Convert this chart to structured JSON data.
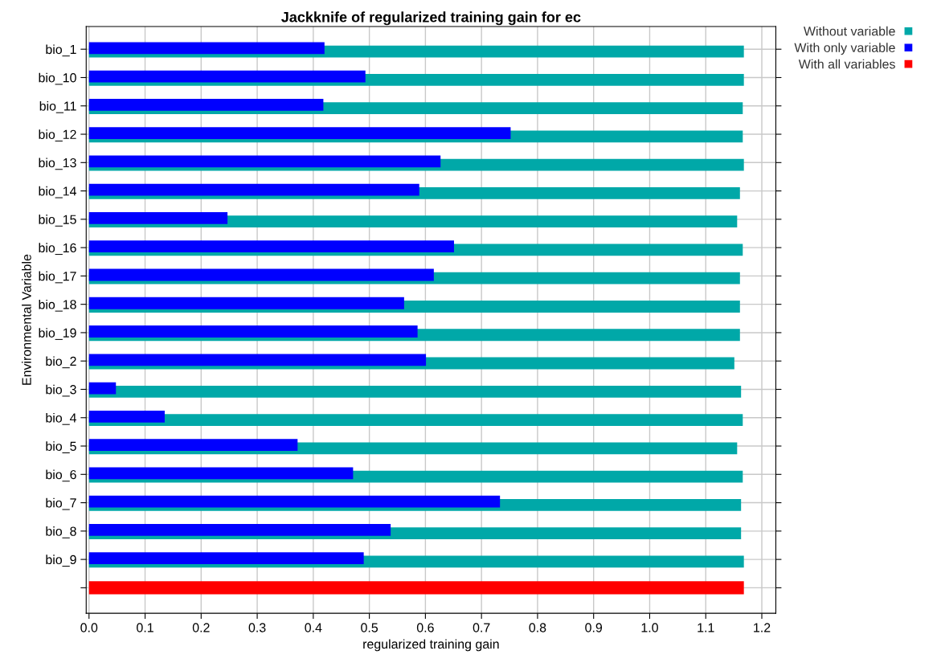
{
  "chart_data": {
    "type": "bar",
    "orientation": "horizontal",
    "title": "Jackknife of regularized training gain for ec",
    "xlabel": "regularized training gain",
    "ylabel": "Environmental Variable",
    "categories": [
      "bio_1",
      "bio_10",
      "bio_11",
      "bio_12",
      "bio_13",
      "bio_14",
      "bio_15",
      "bio_16",
      "bio_17",
      "bio_18",
      "bio_19",
      "bio_2",
      "bio_3",
      "bio_4",
      "bio_5",
      "bio_6",
      "bio_7",
      "bio_8",
      "bio_9",
      null
    ],
    "series": [
      {
        "name": "Without variable",
        "color": "#00a8a8",
        "values": [
          1.168,
          1.168,
          1.166,
          1.166,
          1.168,
          1.161,
          1.156,
          1.166,
          1.161,
          1.161,
          1.161,
          1.151,
          1.163,
          1.166,
          1.156,
          1.166,
          1.163,
          1.163,
          1.168,
          null
        ]
      },
      {
        "name": "With only variable",
        "color": "#0000ff",
        "values": [
          0.42,
          0.493,
          0.418,
          0.752,
          0.627,
          0.589,
          0.247,
          0.651,
          0.615,
          0.562,
          0.586,
          0.601,
          0.048,
          0.135,
          0.372,
          0.471,
          0.733,
          0.538,
          0.49,
          null
        ]
      },
      {
        "name": "With all variables",
        "color": "#ff0000",
        "values": [
          null,
          null,
          null,
          null,
          null,
          null,
          null,
          null,
          null,
          null,
          null,
          null,
          null,
          null,
          null,
          null,
          null,
          null,
          null,
          1.168
        ]
      }
    ],
    "xlim": [
      -0.005,
      1.225
    ],
    "xticks": [
      {
        "value": 0,
        "label": "0.0"
      },
      0.1,
      0.2,
      0.3,
      0.4,
      0.5,
      0.6,
      0.7,
      0.8,
      0.9,
      {
        "value": 1,
        "label": "1.0"
      },
      1.1,
      1.2
    ],
    "grid": true,
    "legend": "top right"
  }
}
